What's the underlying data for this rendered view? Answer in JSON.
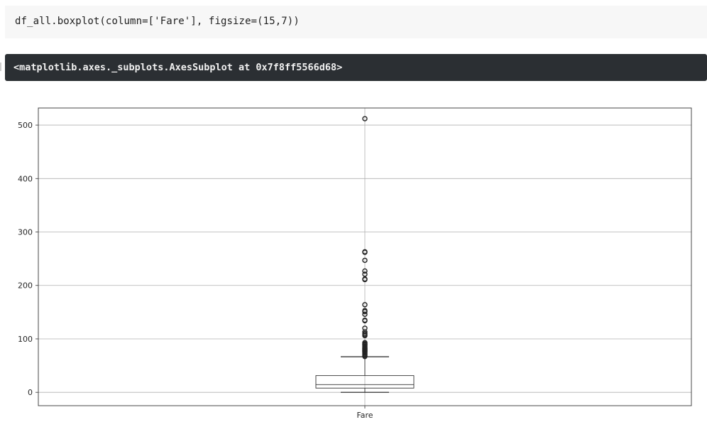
{
  "code_cell": {
    "source": "df_all.boxplot(column=['Fare'], figsize=(15,7))"
  },
  "output": {
    "text": "<matplotlib.axes._subplots.AxesSubplot at 0x7f8ff5566d68>"
  },
  "chart_data": {
    "type": "box",
    "categories": [
      "Fare"
    ],
    "ylim": [
      -25,
      532
    ],
    "yticks": [
      0,
      100,
      200,
      300,
      400,
      500
    ],
    "grid": true,
    "box": {
      "q1": 7.9,
      "median": 14.45,
      "q3": 31.3,
      "whisker_low": 0,
      "whisker_high": 66.6
    },
    "outliers": [
      67,
      69,
      71,
      73,
      75,
      76,
      77,
      78,
      79,
      80,
      81,
      82,
      83,
      84,
      86,
      87,
      89,
      90,
      91,
      93,
      106,
      108,
      110,
      113,
      120,
      134,
      135,
      146,
      151,
      153,
      164,
      211,
      212,
      221,
      227,
      247,
      262,
      263,
      512
    ]
  }
}
